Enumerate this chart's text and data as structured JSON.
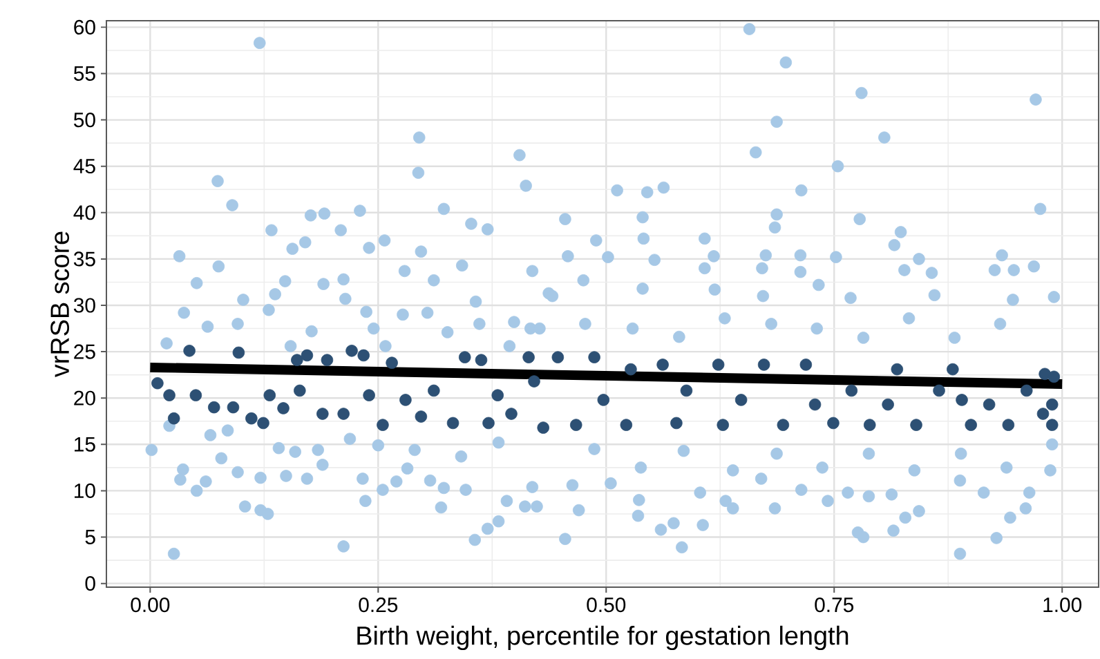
{
  "chart_data": {
    "type": "scatter",
    "xlabel": "Birth weight, percentile for gestation length",
    "ylabel": "vrRSB score",
    "xlim": [
      -0.048,
      1.04
    ],
    "ylim": [
      -0.4,
      60.7
    ],
    "xticks": [
      {
        "value": 0,
        "label": "0.00"
      },
      {
        "value": 0.25,
        "label": "0.25"
      },
      {
        "value": 0.5,
        "label": "0.50"
      },
      {
        "value": 0.75,
        "label": "0.75"
      },
      {
        "value": 1,
        "label": "1.00"
      }
    ],
    "yticks": [
      0,
      5,
      10,
      15,
      20,
      25,
      30,
      35,
      40,
      45,
      50,
      55,
      60
    ],
    "grid": true,
    "series": [
      {
        "marker": "circle",
        "color": "#a6c8e6",
        "x": [
          0.12,
          0.295,
          0.294,
          0.405,
          0.412,
          0.074,
          0.09,
          0.176,
          0.191,
          0.23,
          0.322,
          0.133,
          0.209,
          0.352,
          0.37,
          0.032,
          0.24,
          0.257,
          0.156,
          0.17,
          0.297,
          0.279,
          0.342,
          0.075,
          0.419,
          0.051,
          0.148,
          0.19,
          0.212,
          0.311,
          0.357,
          0.037,
          0.102,
          0.137,
          0.214,
          0.237,
          0.277,
          0.304,
          0.399,
          0.063,
          0.096,
          0.13,
          0.177,
          0.245,
          0.326,
          0.361,
          0.018,
          0.154,
          0.258,
          0.394,
          0.417,
          0.437,
          0.0015,
          0.021,
          0.026,
          0.036,
          0.033,
          0.051,
          0.061,
          0.066,
          0.085,
          0.078,
          0.096,
          0.104,
          0.121,
          0.129,
          0.121,
          0.141,
          0.159,
          0.172,
          0.189,
          0.149,
          0.212,
          0.236,
          0.219,
          0.233,
          0.255,
          0.27,
          0.282,
          0.319,
          0.322,
          0.307,
          0.346,
          0.356,
          0.37,
          0.382,
          0.391,
          0.411,
          0.424,
          0.419,
          0.382,
          0.341,
          0.29,
          0.25,
          0.184,
          0.657,
          0.697,
          0.78,
          0.971,
          0.687,
          0.805,
          0.664,
          0.754,
          0.512,
          0.545,
          0.563,
          0.714,
          0.455,
          0.54,
          0.687,
          0.778,
          0.976,
          0.489,
          0.541,
          0.685,
          0.823,
          0.816,
          0.608,
          0.458,
          0.502,
          0.553,
          0.618,
          0.675,
          0.713,
          0.752,
          0.843,
          0.934,
          0.608,
          0.671,
          0.713,
          0.827,
          0.926,
          0.947,
          0.969,
          0.857,
          0.475,
          0.54,
          0.619,
          0.733,
          0.768,
          0.86,
          0.991,
          0.946,
          0.672,
          0.441,
          0.455,
          0.47,
          0.535,
          0.56,
          0.574,
          0.583,
          0.606,
          0.631,
          0.639,
          0.685,
          0.714,
          0.743,
          0.776,
          0.782,
          0.788,
          0.815,
          0.828,
          0.843,
          0.888,
          0.928,
          0.943,
          0.96,
          0.964,
          0.914,
          0.888,
          0.463,
          0.505,
          0.536,
          0.603,
          0.67,
          0.765,
          0.813,
          0.987,
          0.989,
          0.487,
          0.585,
          0.687,
          0.788,
          0.889,
          0.939,
          0.538,
          0.639,
          0.737,
          0.838,
          0.427,
          0.477,
          0.529,
          0.58,
          0.63,
          0.681,
          0.731,
          0.782,
          0.832,
          0.882,
          0.932
        ],
        "values": [
          58.3,
          48.1,
          44.3,
          46.2,
          42.9,
          43.4,
          40.8,
          39.7,
          39.9,
          40.2,
          40.4,
          38.1,
          38.1,
          38.8,
          38.2,
          35.3,
          36.2,
          37.0,
          36.1,
          36.8,
          35.8,
          33.7,
          34.3,
          34.2,
          33.7,
          32.4,
          32.6,
          32.3,
          32.8,
          32.7,
          30.4,
          29.2,
          30.6,
          31.2,
          30.7,
          29.3,
          29.0,
          29.2,
          28.2,
          27.7,
          28.0,
          29.5,
          27.2,
          27.5,
          27.1,
          28.0,
          25.9,
          25.6,
          25.6,
          25.6,
          27.5,
          31.3,
          14.4,
          17.0,
          3.2,
          12.3,
          11.2,
          10.0,
          11.0,
          16.0,
          16.5,
          13.5,
          12.0,
          8.3,
          7.9,
          7.5,
          11.4,
          14.6,
          14.2,
          11.3,
          12.8,
          11.6,
          4.0,
          8.9,
          15.6,
          11.3,
          10.1,
          11.0,
          12.4,
          8.2,
          10.3,
          11.1,
          10.1,
          4.7,
          5.9,
          6.7,
          8.9,
          8.3,
          8.3,
          10.4,
          15.2,
          13.7,
          14.4,
          14.9,
          14.4,
          59.8,
          56.2,
          52.9,
          52.2,
          49.8,
          48.1,
          46.5,
          45.0,
          42.4,
          42.2,
          42.7,
          42.4,
          39.3,
          39.5,
          39.8,
          39.3,
          40.4,
          37.0,
          37.2,
          38.4,
          37.9,
          36.5,
          37.2,
          35.3,
          35.2,
          34.9,
          35.3,
          35.4,
          35.4,
          35.2,
          35.0,
          35.4,
          34.0,
          34.0,
          33.6,
          33.8,
          33.8,
          33.8,
          34.2,
          33.5,
          32.7,
          31.8,
          31.7,
          32.2,
          30.8,
          31.1,
          30.9,
          30.6,
          31.0,
          31.0,
          4.8,
          7.9,
          7.3,
          5.8,
          6.5,
          3.9,
          6.3,
          8.9,
          8.1,
          8.1,
          10.1,
          8.9,
          5.5,
          5.0,
          9.4,
          5.7,
          7.1,
          7.8,
          3.2,
          4.9,
          7.1,
          8.1,
          9.8,
          9.8,
          11.1,
          10.6,
          10.8,
          9.0,
          9.8,
          11.3,
          9.8,
          9.6,
          12.2,
          15.0,
          14.5,
          14.3,
          14.0,
          14.0,
          14.0,
          12.5,
          12.5,
          12.2,
          12.5,
          12.2,
          27.5,
          28.0,
          27.5,
          26.6,
          28.6,
          28.0,
          27.5,
          26.5,
          28.6,
          26.5,
          28.0
        ]
      },
      {
        "marker": "circle",
        "color": "#2d5074",
        "x": [
          0.008,
          0.043,
          0.026,
          0.021,
          0.05,
          0.07,
          0.097,
          0.111,
          0.091,
          0.131,
          0.146,
          0.161,
          0.172,
          0.164,
          0.189,
          0.194,
          0.212,
          0.221,
          0.234,
          0.255,
          0.265,
          0.28,
          0.297,
          0.311,
          0.332,
          0.345,
          0.363,
          0.371,
          0.381,
          0.396,
          0.415,
          0.431,
          0.421,
          0.124,
          0.24,
          0.447,
          0.467,
          0.487,
          0.497,
          0.522,
          0.527,
          0.562,
          0.577,
          0.588,
          0.623,
          0.628,
          0.648,
          0.673,
          0.694,
          0.719,
          0.729,
          0.749,
          0.769,
          0.789,
          0.809,
          0.84,
          0.865,
          0.88,
          0.9,
          0.92,
          0.941,
          0.961,
          0.981,
          0.991,
          0.989,
          0.989,
          0.979,
          0.89,
          0.819
        ],
        "values": [
          21.6,
          25.1,
          17.8,
          20.3,
          20.3,
          19.0,
          24.9,
          17.8,
          19.0,
          20.3,
          18.9,
          24.1,
          24.6,
          20.8,
          18.3,
          24.1,
          18.3,
          25.1,
          24.6,
          17.1,
          23.8,
          19.8,
          18.0,
          20.8,
          17.3,
          24.4,
          24.1,
          17.3,
          20.3,
          18.3,
          24.4,
          16.8,
          21.8,
          17.3,
          20.3,
          24.4,
          17.1,
          24.4,
          19.8,
          17.1,
          23.1,
          23.6,
          17.3,
          20.8,
          23.6,
          17.1,
          19.8,
          23.6,
          17.1,
          23.6,
          19.3,
          17.3,
          20.8,
          17.1,
          19.3,
          17.1,
          20.8,
          23.1,
          17.1,
          19.3,
          17.1,
          20.8,
          22.6,
          22.3,
          19.3,
          17.1,
          18.3,
          19.8,
          23.1
        ]
      },
      {
        "type": "line",
        "marker": "none",
        "color": "#000000",
        "x": [
          0,
          1
        ],
        "values": [
          23.3,
          21.5
        ]
      }
    ]
  }
}
